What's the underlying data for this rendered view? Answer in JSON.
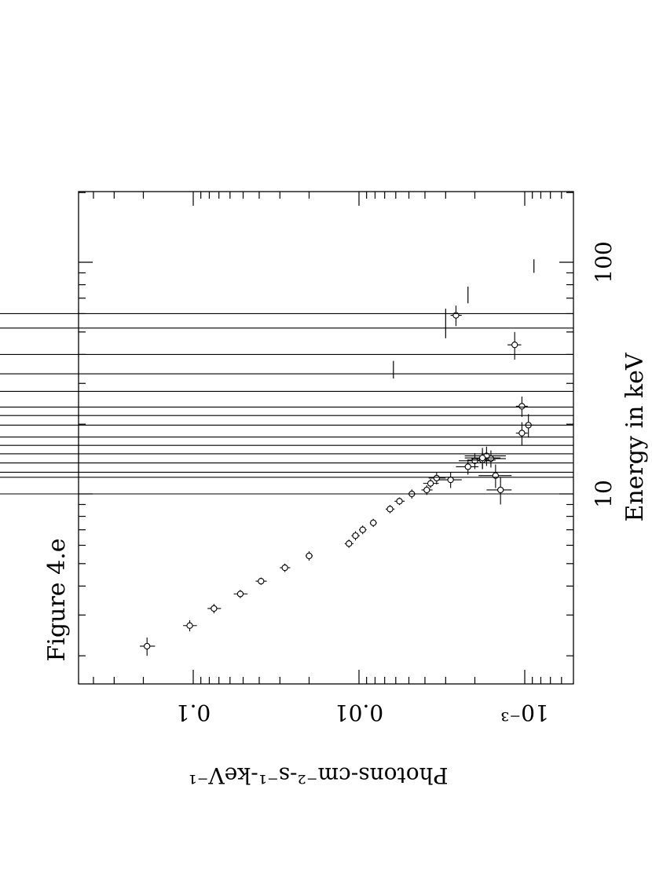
{
  "figure_label": "Figure 4.e",
  "chart_data": {
    "type": "scatter",
    "orientation": "rotated-90-clockwise",
    "x_axis": {
      "label": "Energy in keV",
      "scale": "log",
      "range": [
        1.9,
        300
      ],
      "tick_labels": [
        "10",
        "100"
      ]
    },
    "y_axis": {
      "label": "Photons-cm⁻²-s⁻¹-keV⁻¹",
      "scale": "log",
      "range": [
        0.0007,
        0.3
      ],
      "tick_labels": [
        "10⁻³",
        "0.01",
        "0.1"
      ]
    },
    "grid": false,
    "legend": "none",
    "points": [
      {
        "x": 2.2,
        "y": 0.19,
        "xerr": [
          2.0,
          2.4
        ],
        "yerr": [
          0.17,
          0.21
        ]
      },
      {
        "x": 2.7,
        "y": 0.105,
        "xerr": [
          2.55,
          2.85
        ],
        "yerr": [
          0.095,
          0.115
        ]
      },
      {
        "x": 3.2,
        "y": 0.075,
        "xerr": [
          3.05,
          3.35
        ],
        "yerr": [
          0.068,
          0.082
        ]
      },
      {
        "x": 3.7,
        "y": 0.052,
        "xerr": [
          3.55,
          3.85
        ],
        "yerr": [
          0.047,
          0.057
        ]
      },
      {
        "x": 4.2,
        "y": 0.039,
        "xerr": [
          4.05,
          4.35
        ],
        "yerr": [
          0.036,
          0.042
        ]
      },
      {
        "x": 4.8,
        "y": 0.028,
        "xerr": [
          4.6,
          5.0
        ],
        "yerr": [
          0.026,
          0.03
        ]
      },
      {
        "x": 5.4,
        "y": 0.02,
        "xerr": [
          5.15,
          5.65
        ],
        "yerr": [
          0.019,
          0.021
        ]
      },
      {
        "x": 6.1,
        "y": 0.0115,
        "xerr": [
          5.85,
          6.35
        ],
        "yerr": [
          0.0108,
          0.0122
        ]
      },
      {
        "x": 6.6,
        "y": 0.0105,
        "xerr": [
          6.3,
          6.9
        ],
        "yerr": [
          0.0099,
          0.0111
        ]
      },
      {
        "x": 7.0,
        "y": 0.0095,
        "xerr": [
          6.7,
          7.3
        ],
        "yerr": [
          0.009,
          0.01
        ]
      },
      {
        "x": 7.5,
        "y": 0.0082,
        "xerr": [
          7.2,
          7.8
        ],
        "yerr": [
          0.0078,
          0.0086
        ]
      },
      {
        "x": 8.6,
        "y": 0.0065,
        "xerr": [
          8.25,
          8.95
        ],
        "yerr": [
          0.0061,
          0.0069
        ]
      },
      {
        "x": 9.3,
        "y": 0.0057,
        "xerr": [
          8.95,
          9.65
        ],
        "yerr": [
          0.0053,
          0.0061
        ]
      },
      {
        "x": 10.0,
        "y": 0.0048,
        "xerr": [
          9.55,
          10.45
        ],
        "yerr": [
          0.0045,
          0.0051
        ]
      },
      {
        "x": 10.4,
        "y": 0.0039,
        "xerr": [
          9.9,
          10.9
        ],
        "yerr": [
          0.0036,
          0.0042
        ]
      },
      {
        "x": 11.1,
        "y": 0.0037,
        "xerr": [
          10.6,
          11.6
        ],
        "yerr": [
          0.0033,
          0.0041
        ]
      },
      {
        "x": 11.7,
        "y": 0.0034,
        "xerr": [
          11.0,
          12.4
        ],
        "yerr": [
          0.003,
          0.0038
        ]
      },
      {
        "x": 11.5,
        "y": 0.0028,
        "xerr": [
          10.6,
          12.4
        ],
        "yerr": [
          0.0024,
          0.0033
        ]
      },
      {
        "x": 13.1,
        "y": 0.0022,
        "xerr": [
          12.1,
          14.1
        ],
        "yerr": [
          0.0019,
          0.0026
        ]
      },
      {
        "x": 13.9,
        "y": 0.002,
        "xerr": [
          12.8,
          15.0
        ],
        "yerr": [
          0.0016,
          0.0025
        ]
      },
      {
        "x": 14.2,
        "y": 0.0016,
        "xerr": [
          13.0,
          15.4
        ],
        "yerr": [
          0.0013,
          0.0021
        ]
      },
      {
        "x": 14.6,
        "y": 0.0017,
        "xerr": [
          13.2,
          16.0
        ],
        "yerr": [
          0.0013,
          0.0023
        ]
      },
      {
        "x": 12.0,
        "y": 0.0015,
        "xerr": [
          10.6,
          13.4
        ],
        "yerr": [
          0.0012,
          0.0019
        ]
      },
      {
        "x": 14.0,
        "y": 0.0018,
        "xerr": [
          12.8,
          15.2
        ],
        "yerr": [
          0.0015,
          0.0022
        ]
      },
      {
        "x": 14.3,
        "y": 0.0018,
        "xerr": [
          12.8,
          15.8
        ],
        "yerr": [
          0.0014,
          0.0023
        ]
      },
      {
        "x": 10.4,
        "y": 0.0014,
        "xerr": [
          9.0,
          11.8
        ],
        "yerr": [
          0.0012,
          0.0017
        ]
      },
      {
        "x": 18.3,
        "y": 0.00104,
        "xerr": [
          16.2,
          20.4
        ],
        "yerr": [
          0.00096,
          0.00113
        ]
      },
      {
        "x": 19.8,
        "y": 0.00095,
        "xerr": [
          17.5,
          22.1
        ],
        "yerr": [
          0.00088,
          0.00103
        ]
      },
      {
        "x": 23.9,
        "y": 0.00104,
        "xerr": [
          21.5,
          26.3
        ],
        "yerr": [
          0.00096,
          0.00113
        ]
      },
      {
        "x": 44.0,
        "y": 0.00115,
        "xerr": [
          38.0,
          50.0
        ],
        "yerr": [
          0.00105,
          0.00127
        ]
      },
      {
        "x": 59.0,
        "y": 0.0026,
        "xerr": [
          53.0,
          65.0
        ],
        "yerr": [
          0.0024,
          0.0028
        ]
      }
    ],
    "upper_limits": [
      {
        "x": 10.0,
        "y": 0.00072,
        "x_from": 8.9
      },
      {
        "x": 11.8,
        "y": 0.00072,
        "x_from": 10.4
      },
      {
        "x": 12.4,
        "y": 0.00072,
        "x_from": 10.8
      },
      {
        "x": 13.6,
        "y": 0.00072,
        "x_from": 11.8
      },
      {
        "x": 14.9,
        "y": 0.00072,
        "x_from": 12.8
      },
      {
        "x": 16.2,
        "y": 0.00072,
        "x_from": 14.6
      },
      {
        "x": 17.6,
        "y": 0.00072,
        "x_from": 15.8
      },
      {
        "x": 19.8,
        "y": 0.00072,
        "x_from": 17.6
      },
      {
        "x": 21.8,
        "y": 0.00072,
        "x_from": 19.8
      },
      {
        "x": 23.7,
        "y": 0.00072,
        "x_from": 21.8
      },
      {
        "x": 27.7,
        "y": 0.00072,
        "x_from": 23.8
      },
      {
        "x": 33.0,
        "y": 0.00072,
        "x_from": 27.5
      },
      {
        "x": 40.0,
        "y": 0.00072,
        "x_from": 36.0
      },
      {
        "x": 52.0,
        "y": 0.00072,
        "x_from": 44.0
      },
      {
        "x": 60.0,
        "y": 0.00072,
        "x_from": 52.0
      }
    ],
    "flat_segments": [
      {
        "y": 0.0062,
        "x_from": 31.5,
        "x_to": 37.5
      },
      {
        "y": 0.003,
        "x_from": 47.0,
        "x_to": 63.0
      },
      {
        "y": 0.0022,
        "x_from": 66.5,
        "x_to": 78.5
      },
      {
        "y": 0.00088,
        "x_from": 90.0,
        "x_to": 103.0
      }
    ]
  }
}
